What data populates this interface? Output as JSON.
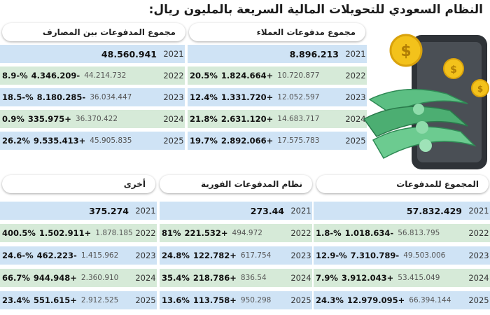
{
  "title": "النظام السعودي للتحويلات المالية السريعة بالمليون ريال:",
  "sections": {
    "customers": {
      "label": "مجموع مدفوعات العملاء",
      "rows": [
        {
          "year": "2021",
          "total": "8.896.213",
          "change": "",
          "pct": ""
        },
        {
          "year": "2022",
          "total": "10.720.877",
          "change": "1.824.664+",
          "pct": "20.5%"
        },
        {
          "year": "2023",
          "total": "12.052.597",
          "change": "1.331.720+",
          "pct": "12.4%"
        },
        {
          "year": "2024",
          "total": "14.683.717",
          "change": "2.631.120+",
          "pct": "21.8%"
        },
        {
          "year": "2025",
          "total": "17.575.783",
          "change": "2.892.066+",
          "pct": "19.7%"
        }
      ]
    },
    "interbank": {
      "label": "مجموع المدفوعات بين المصارف",
      "rows": [
        {
          "year": "2021",
          "total": "48.560.941",
          "change": "",
          "pct": ""
        },
        {
          "year": "2022",
          "total": "44.214.732",
          "change": "4.346.209-",
          "pct": "8.9-%"
        },
        {
          "year": "2023",
          "total": "36.034.447",
          "change": "8.180.285-",
          "pct": "18.5-%"
        },
        {
          "year": "2024",
          "total": "36.370.422",
          "change": "335.975+",
          "pct": "0.9%"
        },
        {
          "year": "2025",
          "total": "45.905.835",
          "change": "9.535.413+",
          "pct": "26.2%"
        }
      ]
    },
    "total": {
      "label": "المجموع للمدفوعات",
      "rows": [
        {
          "year": "2021",
          "total": "57.832.429",
          "change": "",
          "pct": ""
        },
        {
          "year": "2022",
          "total": "56.813.795",
          "change": "1.018.634-",
          "pct": "1.8-%"
        },
        {
          "year": "2023",
          "total": "49.503.006",
          "change": "7.310.789-",
          "pct": "12.9-%"
        },
        {
          "year": "2024",
          "total": "53.415.049",
          "change": "3.912.043+",
          "pct": "7.9%"
        },
        {
          "year": "2025",
          "total": "66.394.144",
          "change": "12.979.095+",
          "pct": "24.3%"
        }
      ]
    },
    "instant": {
      "label": "نظام المدفوعات الفورية",
      "rows": [
        {
          "year": "2021",
          "total": "273.44",
          "change": "",
          "pct": ""
        },
        {
          "year": "2022",
          "total": "494.972",
          "change": "221.532+",
          "pct": "81%"
        },
        {
          "year": "2023",
          "total": "617.754",
          "change": "122.782+",
          "pct": "24.8%"
        },
        {
          "year": "2024",
          "total": "836.54",
          "change": "218.786+",
          "pct": "35.4%"
        },
        {
          "year": "2025",
          "total": "950.298",
          "change": "113.758+",
          "pct": "13.6%"
        }
      ]
    },
    "other": {
      "label": "أخرى",
      "rows": [
        {
          "year": "2021",
          "total": "375.274",
          "change": "",
          "pct": ""
        },
        {
          "year": "2022",
          "total": "1.878.185",
          "change": "1.502.911+",
          "pct": "400.5%"
        },
        {
          "year": "2023",
          "total": "1.415.962",
          "change": "462.223-",
          "pct": "24.6-%"
        },
        {
          "year": "2024",
          "total": "2.360.910",
          "change": "944.948+",
          "pct": "66.7%"
        },
        {
          "year": "2025",
          "total": "2.912.525",
          "change": "551.615+",
          "pct": "23.4%"
        }
      ]
    }
  },
  "colors": {
    "row_blue": "#cfe3f5",
    "row_green": "#d6ead8",
    "money": "#3fae6a",
    "coin": "#f3c21b"
  }
}
